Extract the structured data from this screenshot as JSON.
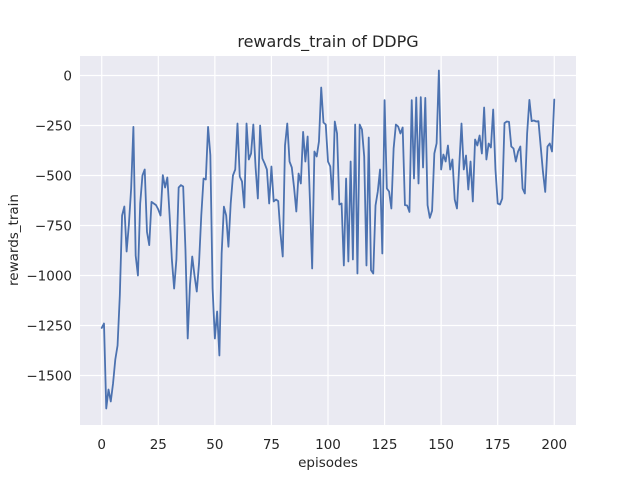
{
  "colors": {
    "figure_bg": "#ffffff",
    "axes_bg": "#eaeaf2",
    "grid": "#ffffff",
    "text": "#262626",
    "line": "#4c72b0"
  },
  "chart_data": {
    "type": "line",
    "title": "rewards_train of DDPG",
    "xlabel": "episodes",
    "ylabel": "rewards_train",
    "grid": true,
    "legend": "none",
    "x_ticks": [
      0,
      25,
      50,
      75,
      100,
      125,
      150,
      175,
      200
    ],
    "y_ticks": [
      0,
      -250,
      -500,
      -750,
      -1000,
      -1250,
      -1500
    ],
    "xlim": [
      -9.6,
      209.6
    ],
    "ylim": [
      -1747.5,
      97.5
    ],
    "series": [
      {
        "name": "rewards_train",
        "x_start": 0,
        "x_step": 1,
        "values": [
          -1262,
          -1240,
          -1665,
          -1570,
          -1630,
          -1540,
          -1420,
          -1350,
          -1100,
          -700,
          -655,
          -880,
          -745,
          -565,
          -257,
          -900,
          -1000,
          -640,
          -500,
          -470,
          -782,
          -848,
          -632,
          -640,
          -648,
          -670,
          -700,
          -498,
          -560,
          -510,
          -700,
          -920,
          -1065,
          -920,
          -560,
          -548,
          -555,
          -870,
          -1315,
          -1048,
          -905,
          -1000,
          -1080,
          -940,
          -700,
          -515,
          -520,
          -257,
          -398,
          -1065,
          -1315,
          -1180,
          -1400,
          -890,
          -656,
          -700,
          -856,
          -640,
          -500,
          -470,
          -240,
          -505,
          -530,
          -660,
          -240,
          -420,
          -390,
          -245,
          -460,
          -615,
          -250,
          -415,
          -440,
          -470,
          -640,
          -455,
          -630,
          -620,
          -628,
          -790,
          -905,
          -350,
          -240,
          -430,
          -460,
          -560,
          -680,
          -490,
          -540,
          -282,
          -430,
          -305,
          -620,
          -965,
          -380,
          -405,
          -330,
          -60,
          -235,
          -245,
          -430,
          -455,
          -620,
          -230,
          -290,
          -645,
          -640,
          -950,
          -515,
          -930,
          -430,
          -920,
          -245,
          -990,
          -245,
          -270,
          -405,
          -950,
          -310,
          -973,
          -990,
          -650,
          -580,
          -470,
          -890,
          -123,
          -565,
          -580,
          -665,
          -365,
          -245,
          -255,
          -290,
          -260,
          -648,
          -650,
          -682,
          -123,
          -515,
          -110,
          -540,
          -108,
          -460,
          -112,
          -648,
          -712,
          -676,
          -390,
          -339,
          25,
          -470,
          -395,
          -430,
          -350,
          -470,
          -420,
          -620,
          -665,
          -450,
          -240,
          -470,
          -400,
          -570,
          -430,
          -630,
          -320,
          -350,
          -300,
          -390,
          -160,
          -420,
          -340,
          -360,
          -170,
          -470,
          -640,
          -645,
          -615,
          -238,
          -230,
          -232,
          -355,
          -365,
          -430,
          -380,
          -355,
          -565,
          -590,
          -290,
          -122,
          -228,
          -225,
          -230,
          -228,
          -355,
          -482,
          -582,
          -355,
          -340,
          -380,
          -120
        ]
      }
    ]
  }
}
